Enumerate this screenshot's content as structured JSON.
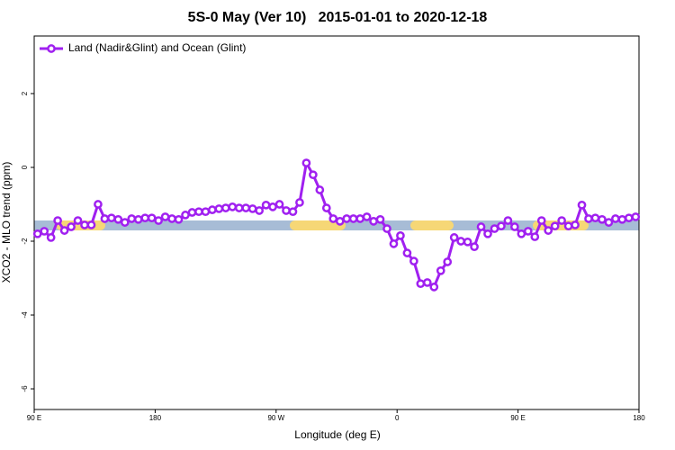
{
  "chart_data": {
    "type": "line",
    "title": "5S-0 May (Ver 10)   2015-01-01 to 2020-12-18",
    "xlabel": "Longitude (deg E)",
    "ylabel": "XCO2 - MLO trend (ppm)",
    "xlim": [
      90,
      540
    ],
    "ylim": [
      -6.56,
      3.56
    ],
    "xticks": [
      {
        "value": 90,
        "label": "90 E"
      },
      {
        "value": 180,
        "label": "180"
      },
      {
        "value": 270,
        "label": "90 W"
      },
      {
        "value": 360,
        "label": "0"
      },
      {
        "value": 450,
        "label": "90 E"
      },
      {
        "value": 540,
        "label": "180"
      }
    ],
    "yticks": [
      2,
      0,
      -2,
      -4,
      -6
    ],
    "legend": "top-left",
    "x": [
      92.5,
      97.5,
      102.5,
      107.5,
      112.5,
      117.5,
      122.5,
      127.5,
      132.5,
      137.5,
      142.5,
      147.5,
      152.5,
      157.5,
      162.5,
      167.5,
      172.5,
      177.5,
      182.5,
      187.5,
      192.5,
      197.5,
      202.5,
      207.5,
      212.5,
      217.5,
      222.5,
      227.5,
      232.5,
      237.5,
      242.5,
      247.5,
      252.5,
      257.5,
      262.5,
      267.5,
      272.5,
      277.5,
      282.5,
      287.5,
      292.5,
      297.5,
      302.5,
      307.5,
      312.5,
      317.5,
      322.5,
      327.5,
      332.5,
      337.5,
      342.5,
      347.5,
      352.5,
      357.5,
      362.5,
      367.5,
      372.5,
      377.5,
      382.5,
      387.5,
      392.5,
      397.5,
      402.5,
      407.5,
      412.5,
      417.5,
      422.5,
      427.5,
      432.5,
      437.5,
      442.5,
      447.5,
      452.5,
      457.5,
      462.5,
      467.5,
      472.5,
      477.5,
      482.5,
      487.5,
      492.5,
      497.5,
      502.5,
      507.5,
      512.5,
      517.5,
      522.5,
      527.5,
      532.5,
      537.5
    ],
    "series": [
      {
        "name": "Land (Nadir&Glint) and Ocean (Glint)",
        "color": "#a020f0",
        "values": [
          -1.8,
          -1.73,
          -1.9,
          -1.44,
          -1.71,
          -1.61,
          -1.44,
          -1.56,
          -1.56,
          -1.0,
          -1.39,
          -1.37,
          -1.41,
          -1.49,
          -1.39,
          -1.41,
          -1.37,
          -1.37,
          -1.44,
          -1.34,
          -1.39,
          -1.41,
          -1.29,
          -1.22,
          -1.2,
          -1.2,
          -1.15,
          -1.12,
          -1.1,
          -1.07,
          -1.1,
          -1.1,
          -1.12,
          -1.17,
          -1.02,
          -1.07,
          -1.0,
          -1.17,
          -1.2,
          -0.95,
          0.12,
          -0.2,
          -0.61,
          -1.1,
          -1.39,
          -1.46,
          -1.39,
          -1.39,
          -1.39,
          -1.34,
          -1.46,
          -1.41,
          -1.66,
          -2.07,
          -1.85,
          -2.32,
          -2.54,
          -3.15,
          -3.12,
          -3.24,
          -2.8,
          -2.56,
          -1.9,
          -2.0,
          -2.02,
          -2.15,
          -1.61,
          -1.8,
          -1.66,
          -1.59,
          -1.44,
          -1.61,
          -1.8,
          -1.73,
          -1.88,
          -1.44,
          -1.71,
          -1.59,
          -1.44,
          -1.59,
          -1.56,
          -1.02,
          -1.39,
          -1.37,
          -1.41,
          -1.49,
          -1.39,
          -1.41,
          -1.37,
          -1.34
        ]
      }
    ]
  }
}
